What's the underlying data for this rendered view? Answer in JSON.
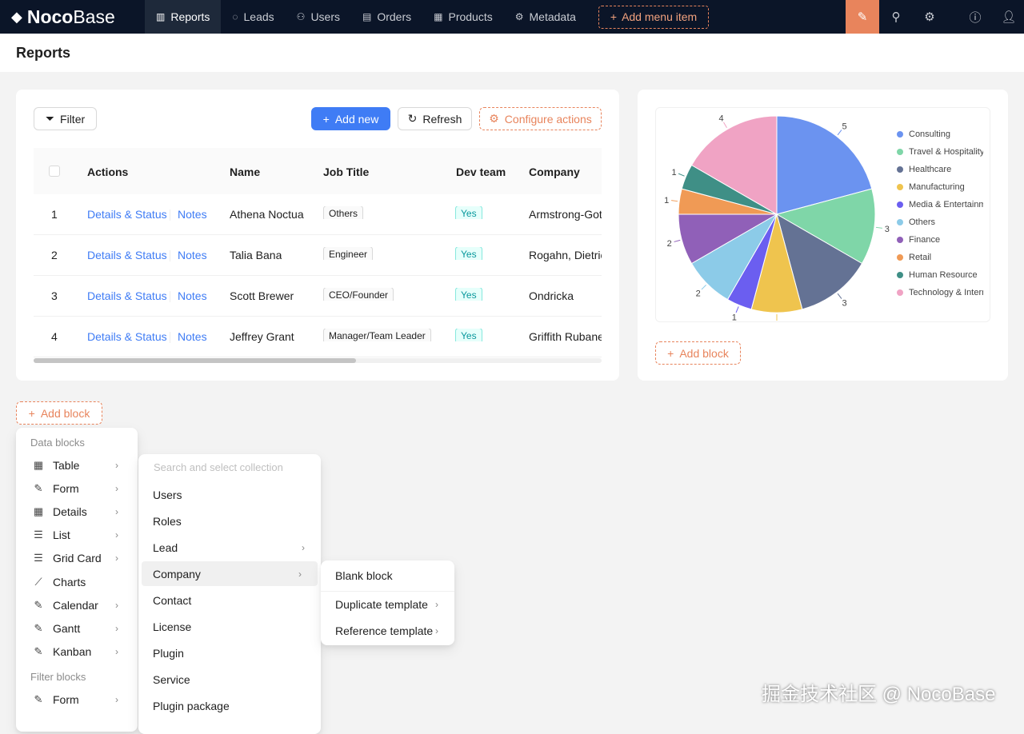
{
  "app": {
    "logo_bold": "Noco",
    "logo_light": "Base"
  },
  "nav": [
    {
      "label": "Reports",
      "icon": "bar-chart-icon"
    },
    {
      "label": "Leads",
      "icon": "chat-icon"
    },
    {
      "label": "Users",
      "icon": "users-icon"
    },
    {
      "label": "Orders",
      "icon": "file-icon"
    },
    {
      "label": "Products",
      "icon": "grid-icon"
    },
    {
      "label": "Metadata",
      "icon": "settings-cog-icon"
    }
  ],
  "add_menu_item": "Add menu item",
  "page_title": "Reports",
  "toolbar": {
    "filter": "Filter",
    "add_new": "Add new",
    "refresh": "Refresh",
    "configure_actions": "Configure actions"
  },
  "table": {
    "columns": [
      "Actions",
      "Name",
      "Job Title",
      "Dev team",
      "Company"
    ],
    "rows": [
      {
        "index": "1",
        "action1": "Details & Status",
        "action2": "Notes",
        "name": "Athena Noctua",
        "job": "Others",
        "dev": "Yes",
        "company": "Armstrong-Gott"
      },
      {
        "index": "2",
        "action1": "Details & Status",
        "action2": "Notes",
        "name": "Talia Bana",
        "job": "Engineer",
        "dev": "Yes",
        "company": "Rogahn, Dietric"
      },
      {
        "index": "3",
        "action1": "Details & Status",
        "action2": "Notes",
        "name": "Scott Brewer",
        "job": "CEO/Founder",
        "dev": "Yes",
        "company": "Ondricka"
      },
      {
        "index": "4",
        "action1": "Details & Status",
        "action2": "Notes",
        "name": "Jeffrey Grant",
        "job": "Manager/Team Leader",
        "dev": "Yes",
        "company": "Griffith Rubaner"
      }
    ]
  },
  "chart_data": {
    "type": "pie",
    "categories": [
      "Consulting",
      "Travel & Hospitality",
      "Healthcare",
      "Manufacturing",
      "Media & Entertainment",
      "Others",
      "Finance",
      "Retail",
      "Human Resource",
      "Technology & Internet"
    ],
    "values": [
      5,
      3,
      3,
      2,
      1,
      2,
      2,
      1,
      1,
      4
    ],
    "colors": [
      "#6b93f0",
      "#7fd6a8",
      "#647294",
      "#efc44e",
      "#6b5ef0",
      "#8ccbe8",
      "#9060b8",
      "#f09a55",
      "#3f8f86",
      "#f0a3c4"
    ],
    "legend": "right"
  },
  "add_block": "Add block",
  "menu1": {
    "group1": "Data blocks",
    "items": [
      {
        "label": "Table",
        "icon": "table-icon",
        "sub": true
      },
      {
        "label": "Form",
        "icon": "edit-icon",
        "sub": true
      },
      {
        "label": "Details",
        "icon": "table-icon",
        "sub": true
      },
      {
        "label": "List",
        "icon": "list-icon",
        "sub": true
      },
      {
        "label": "Grid Card",
        "icon": "list-icon",
        "sub": true
      },
      {
        "label": "Charts",
        "icon": "line-chart-icon",
        "sub": false
      },
      {
        "label": "Calendar",
        "icon": "edit-icon",
        "sub": true
      },
      {
        "label": "Gantt",
        "icon": "edit-icon",
        "sub": true
      },
      {
        "label": "Kanban",
        "icon": "edit-icon",
        "sub": true
      }
    ],
    "group2": "Filter blocks",
    "items2": [
      {
        "label": "Form",
        "icon": "edit-icon",
        "sub": true
      }
    ]
  },
  "menu2": {
    "placeholder": "Search and select collection",
    "items": [
      {
        "label": "Users"
      },
      {
        "label": "Roles"
      },
      {
        "label": "Lead",
        "sub": true
      },
      {
        "label": "Company",
        "sub": true,
        "active": true
      },
      {
        "label": "Contact"
      },
      {
        "label": "License"
      },
      {
        "label": "Plugin"
      },
      {
        "label": "Service"
      },
      {
        "label": "Plugin package"
      }
    ]
  },
  "menu3": {
    "items": [
      {
        "label": "Blank block"
      },
      {
        "label": "Duplicate template",
        "sub": true
      },
      {
        "label": "Reference template",
        "sub": true
      }
    ]
  },
  "watermark": "掘金技术社区 @ NocoBase"
}
